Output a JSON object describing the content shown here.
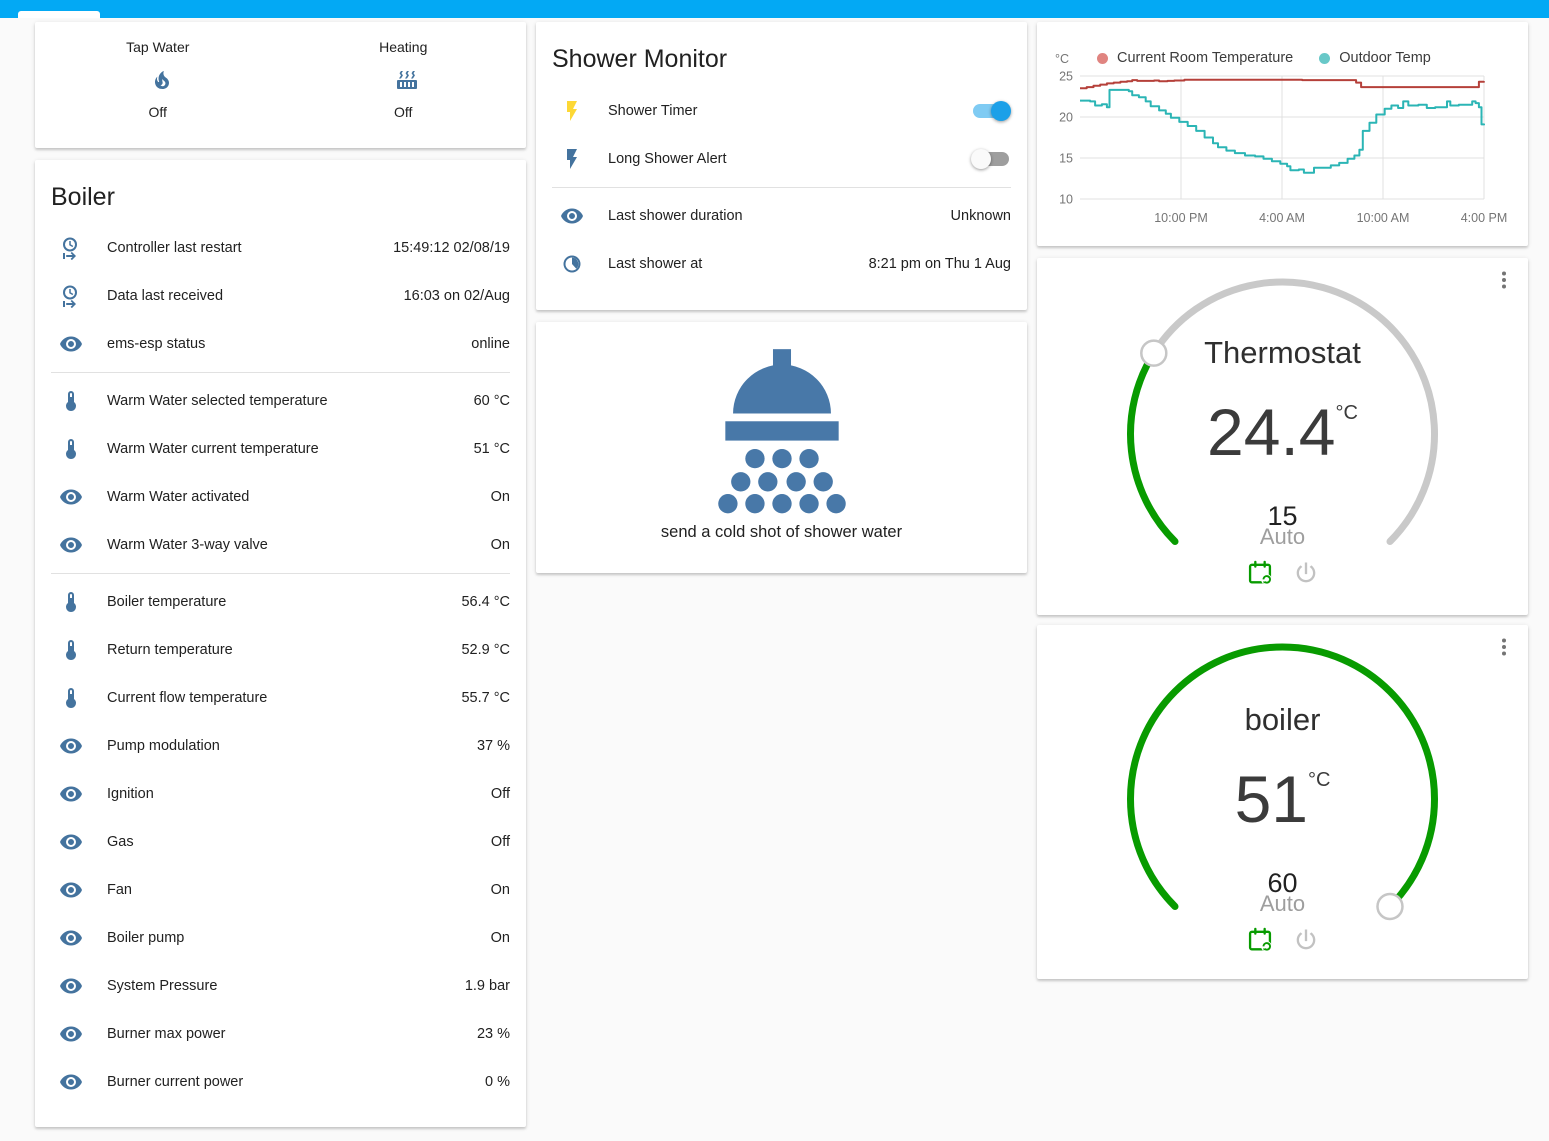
{
  "topbar": {
    "color": "#03a9f4"
  },
  "glance": {
    "items": [
      {
        "name": "Tap Water",
        "icon": "fire-icon",
        "state": "Off"
      },
      {
        "name": "Heating",
        "icon": "radiator-icon",
        "state": "Off"
      }
    ]
  },
  "boiler": {
    "title": "Boiler",
    "rows": [
      {
        "icon": "clock-start",
        "label": "Controller last restart",
        "value": "15:49:12 02/08/19"
      },
      {
        "icon": "clock-start",
        "label": "Data last received",
        "value": "16:03 on 02/Aug"
      },
      {
        "icon": "eye",
        "label": "ems-esp status",
        "value": "online"
      },
      {
        "icon": "thermometer",
        "label": "Warm Water selected temperature",
        "value": "60 °C"
      },
      {
        "icon": "thermometer",
        "label": "Warm Water current temperature",
        "value": "51 °C"
      },
      {
        "icon": "eye",
        "label": "Warm Water activated",
        "value": "On"
      },
      {
        "icon": "eye",
        "label": "Warm Water 3-way valve",
        "value": "On"
      },
      {
        "icon": "thermometer",
        "label": "Boiler temperature",
        "value": "56.4 °C"
      },
      {
        "icon": "thermometer",
        "label": "Return temperature",
        "value": "52.9 °C"
      },
      {
        "icon": "thermometer",
        "label": "Current flow temperature",
        "value": "55.7 °C"
      },
      {
        "icon": "eye",
        "label": "Pump modulation",
        "value": "37 %"
      },
      {
        "icon": "eye",
        "label": "Ignition",
        "value": "Off"
      },
      {
        "icon": "eye",
        "label": "Gas",
        "value": "Off"
      },
      {
        "icon": "eye",
        "label": "Fan",
        "value": "On"
      },
      {
        "icon": "eye",
        "label": "Boiler pump",
        "value": "On"
      },
      {
        "icon": "eye",
        "label": "System Pressure",
        "value": "1.9 bar"
      },
      {
        "icon": "eye",
        "label": "Burner max power",
        "value": "23 %"
      },
      {
        "icon": "eye",
        "label": "Burner current power",
        "value": "0 %"
      }
    ]
  },
  "shower_monitor": {
    "title": "Shower Monitor",
    "toggles": [
      {
        "icon": "flash",
        "icon_color": "#fdd835",
        "label": "Shower Timer",
        "on": true
      },
      {
        "icon": "flash",
        "icon_color": "#44739e",
        "label": "Long Shower Alert",
        "on": false
      }
    ],
    "info": [
      {
        "icon": "eye",
        "label": "Last shower duration",
        "value": "Unknown"
      },
      {
        "icon": "clock",
        "label": "Last shower at",
        "value": "8:21 pm on Thu 1 Aug"
      }
    ]
  },
  "shower_button": {
    "label": "send a cold shot of shower water",
    "icon_color": "#4878a8"
  },
  "chart_data": {
    "type": "line",
    "unit": "°C",
    "grid": true,
    "legend_position": "top",
    "x_axis": {
      "range_hours": [
        0,
        24
      ],
      "ticks": [
        {
          "hours": 6,
          "label": "10:00 PM"
        },
        {
          "hours": 12,
          "label": "4:00 AM"
        },
        {
          "hours": 18,
          "label": "10:00 AM"
        },
        {
          "hours": 24,
          "label": "4:00 PM"
        }
      ]
    },
    "y_axis": {
      "ticks": [
        25,
        20,
        15,
        10
      ],
      "range": [
        10,
        25.8
      ]
    },
    "series": [
      {
        "name": "Current Room Temperature",
        "color": "#b5403a",
        "dot_color": "#e08480",
        "points": [
          [
            0,
            23.5
          ],
          [
            0.4,
            23.65
          ],
          [
            0.8,
            23.8
          ],
          [
            1.2,
            23.95
          ],
          [
            1.6,
            24.1
          ],
          [
            2.0,
            24.2
          ],
          [
            2.4,
            24.3
          ],
          [
            2.8,
            24.35
          ],
          [
            3.1,
            24.5
          ],
          [
            3.4,
            24.4
          ],
          [
            4.4,
            24.45
          ],
          [
            4.7,
            24.35
          ],
          [
            5.2,
            24.4
          ],
          [
            5.6,
            24.45
          ],
          [
            6.2,
            24.55
          ],
          [
            12.5,
            24.55
          ],
          [
            13.2,
            24.5
          ],
          [
            16.2,
            24.5
          ],
          [
            16.4,
            24.2
          ],
          [
            16.7,
            23.65
          ],
          [
            23.6,
            23.65
          ],
          [
            23.7,
            24.3
          ],
          [
            24,
            24.35
          ]
        ]
      },
      {
        "name": "Outdoor Temp",
        "color": "#2bb5b5",
        "dot_color": "#68c8c8",
        "points": [
          [
            0,
            22.0
          ],
          [
            0.6,
            21.9
          ],
          [
            0.9,
            21.4
          ],
          [
            1.3,
            21.55
          ],
          [
            1.6,
            21.2
          ],
          [
            1.75,
            23.3
          ],
          [
            2.9,
            23.15
          ],
          [
            3.1,
            22.65
          ],
          [
            3.5,
            22.4
          ],
          [
            3.9,
            21.9
          ],
          [
            4.2,
            21.3
          ],
          [
            4.7,
            20.8
          ],
          [
            5.1,
            20.4
          ],
          [
            5.4,
            19.9
          ],
          [
            5.9,
            19.4
          ],
          [
            6.4,
            18.9
          ],
          [
            6.9,
            18.3
          ],
          [
            7.4,
            17.5
          ],
          [
            7.9,
            16.8
          ],
          [
            8.2,
            16.3
          ],
          [
            8.7,
            15.9
          ],
          [
            9.2,
            15.6
          ],
          [
            9.8,
            15.3
          ],
          [
            10.4,
            15.2
          ],
          [
            10.9,
            14.9
          ],
          [
            11.4,
            14.6
          ],
          [
            11.9,
            14.3
          ],
          [
            12.3,
            14.0
          ],
          [
            12.5,
            13.5
          ],
          [
            13.0,
            13.6
          ],
          [
            13.3,
            13.2
          ],
          [
            13.9,
            13.8
          ],
          [
            14.9,
            14.1
          ],
          [
            15.4,
            14.4
          ],
          [
            15.9,
            14.9
          ],
          [
            16.3,
            15.3
          ],
          [
            16.6,
            16.0
          ],
          [
            16.8,
            18.3
          ],
          [
            17.2,
            19.3
          ],
          [
            17.6,
            20.3
          ],
          [
            18.1,
            21.0
          ],
          [
            18.5,
            21.4
          ],
          [
            18.9,
            21.1
          ],
          [
            19.2,
            21.9
          ],
          [
            19.5,
            21.4
          ],
          [
            20.1,
            21.5
          ],
          [
            20.6,
            21.1
          ],
          [
            21.1,
            21.2
          ],
          [
            21.8,
            21.9
          ],
          [
            22.0,
            21.4
          ],
          [
            22.5,
            21.5
          ],
          [
            23.3,
            21.9
          ],
          [
            23.5,
            21.7
          ],
          [
            23.7,
            21.2
          ],
          [
            23.85,
            19.1
          ],
          [
            24,
            19.0
          ]
        ]
      }
    ]
  },
  "thermostat": {
    "title": "Thermostat",
    "temp": "24.4",
    "unit": "°C",
    "target": "15",
    "mode": "Auto",
    "dial": {
      "min": 7,
      "max": 35,
      "value": 15,
      "arc_deg": 270,
      "active_color": "#089b00",
      "track_color": "#c9c9c9"
    }
  },
  "boiler_gauge": {
    "title": "boiler",
    "temp": "51",
    "unit": "°C",
    "target": "60",
    "mode": "Auto",
    "dial": {
      "min": 7,
      "max": 60,
      "value": 60,
      "arc_deg": 270,
      "active_color": "#089b00",
      "track_color": "#c9c9c9"
    }
  },
  "accent": {
    "mode_green": "#089b00",
    "power_gray": "#c2c2c2"
  }
}
